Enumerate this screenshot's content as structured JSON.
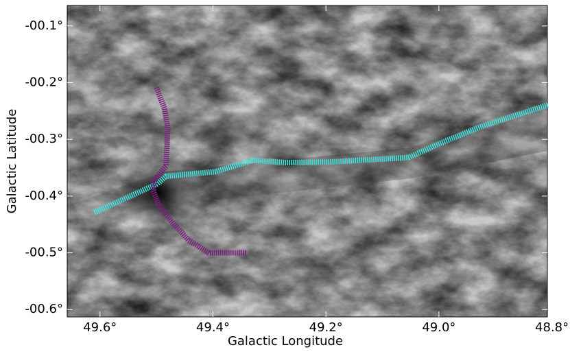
{
  "chart_data": {
    "type": "line",
    "x_label": "Galactic Longitude",
    "y_label": "Galactic Latitude",
    "xlim": [
      49.658,
      48.808
    ],
    "ylim": [
      -0.613,
      -0.064
    ],
    "xticks": [
      {
        "value": 49.6,
        "label": "49.6°"
      },
      {
        "value": 49.4,
        "label": "49.4°"
      },
      {
        "value": 49.2,
        "label": "49.2°"
      },
      {
        "value": 49.0,
        "label": "49.0°"
      },
      {
        "value": 48.8,
        "label": "48.8°"
      }
    ],
    "yticks": [
      {
        "value": -0.1,
        "label": "-00.1°"
      },
      {
        "value": -0.2,
        "label": "-00.2°"
      },
      {
        "value": -0.3,
        "label": "-00.3°"
      },
      {
        "value": -0.4,
        "label": "-00.4°"
      },
      {
        "value": -0.5,
        "label": "-00.5°"
      },
      {
        "value": -0.6,
        "label": "-00.6°"
      }
    ],
    "series": [
      {
        "color": "#3fe3de",
        "x": [
          49.61,
          49.498,
          49.483,
          49.395,
          49.33,
          49.273,
          49.194,
          49.054,
          49.0,
          48.927,
          48.806
        ],
        "values": [
          -0.429,
          -0.378,
          -0.365,
          -0.357,
          -0.337,
          -0.341,
          -0.34,
          -0.332,
          -0.308,
          -0.278,
          -0.239
        ]
      },
      {
        "color": "#7b1f7e",
        "x": [
          49.5,
          49.486,
          49.48,
          49.483,
          49.503,
          49.506,
          49.496,
          49.474,
          49.443,
          49.407,
          49.34
        ],
        "values": [
          -0.209,
          -0.245,
          -0.278,
          -0.347,
          -0.371,
          -0.39,
          -0.416,
          -0.444,
          -0.478,
          -0.5,
          -0.5
        ]
      }
    ]
  }
}
